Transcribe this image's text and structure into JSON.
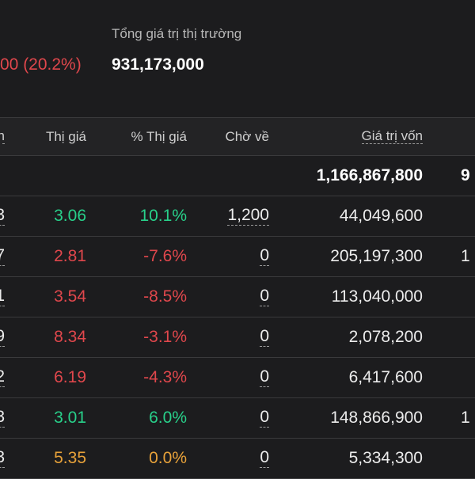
{
  "summary": {
    "pnl_fragment": "00 (20.2%)",
    "market_value_label": "Tổng giá trị thị trường",
    "market_value": "931,173,000"
  },
  "columns": {
    "symbol_fragment": "n",
    "price": "Thị giá",
    "pct_price": "% Thị giá",
    "pending": "Chờ về",
    "cost_value": "Giá trị vốn"
  },
  "total_row": {
    "cost_value": "1,166,867,800",
    "next_fragment": "9"
  },
  "rows": [
    {
      "left_fragment": "3",
      "price": "3.06",
      "pct": "10.1%",
      "pending": "1,200",
      "cost": "44,049,600",
      "next_fragment": "",
      "trend": "up"
    },
    {
      "left_fragment": "7",
      "price": "2.81",
      "pct": "-7.6%",
      "pending": "0",
      "cost": "205,197,300",
      "next_fragment": "1",
      "trend": "down"
    },
    {
      "left_fragment": "1",
      "price": "3.54",
      "pct": "-8.5%",
      "pending": "0",
      "cost": "113,040,000",
      "next_fragment": "",
      "trend": "down"
    },
    {
      "left_fragment": "9",
      "price": "8.34",
      "pct": "-3.1%",
      "pending": "0",
      "cost": "2,078,200",
      "next_fragment": "",
      "trend": "down"
    },
    {
      "left_fragment": "2",
      "price": "6.19",
      "pct": "-4.3%",
      "pending": "0",
      "cost": "6,417,600",
      "next_fragment": "",
      "trend": "down"
    },
    {
      "left_fragment": "3",
      "price": "3.01",
      "pct": "6.0%",
      "pending": "0",
      "cost": "148,866,900",
      "next_fragment": "1",
      "trend": "up"
    },
    {
      "left_fragment": "3",
      "price": "5.35",
      "pct": "0.0%",
      "pending": "0",
      "cost": "5,334,300",
      "next_fragment": "",
      "trend": "ref"
    }
  ],
  "colors": {
    "up": "#28d08a",
    "down": "#e0474c",
    "ref": "#e8a23a",
    "background": "#1c1c1e"
  }
}
